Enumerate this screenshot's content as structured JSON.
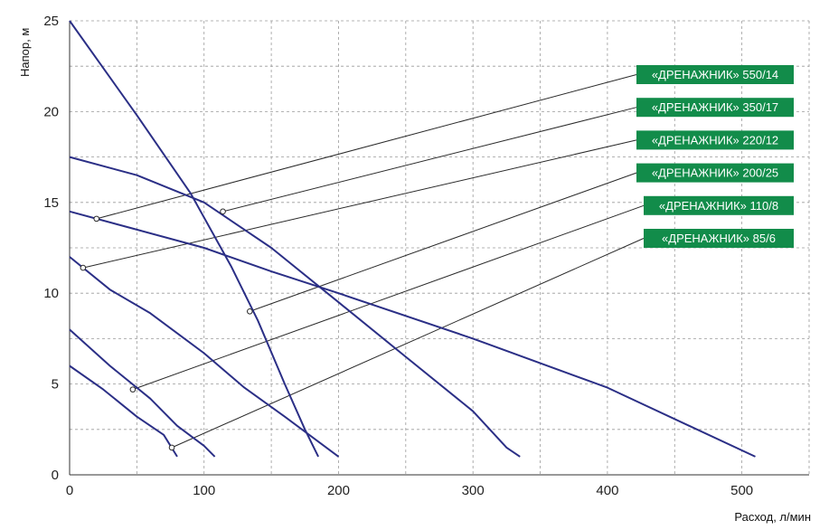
{
  "colors": {
    "curve": "#2b2f86",
    "leader": "#2a2a2a",
    "legend_bg": "#128c4a",
    "legend_text": "#ffffff",
    "grid": "#9a9a9a"
  },
  "chart_data": {
    "type": "line",
    "xlabel": "Расход, л/мин",
    "ylabel": "Напор, м",
    "xlim": [
      0,
      550
    ],
    "ylim": [
      0,
      25
    ],
    "xticks": [
      "0",
      "100",
      "200",
      "300",
      "400",
      "500"
    ],
    "yticks": [
      "0",
      "5",
      "10",
      "15",
      "20",
      "25"
    ],
    "grid": true,
    "grid_style": "dashed",
    "series": [
      {
        "name": "«ДРЕНАЖНИК» 550/14",
        "points": [
          [
            0,
            14.5
          ],
          [
            50,
            13.5
          ],
          [
            100,
            12.5
          ],
          [
            150,
            11.2
          ],
          [
            200,
            10.0
          ],
          [
            300,
            7.5
          ],
          [
            400,
            4.8
          ],
          [
            510,
            1.0
          ]
        ],
        "marker": [
          20,
          14.1
        ]
      },
      {
        "name": "«ДРЕНАЖНИК» 350/17",
        "points": [
          [
            0,
            17.5
          ],
          [
            50,
            16.5
          ],
          [
            100,
            15.0
          ],
          [
            150,
            12.5
          ],
          [
            200,
            9.5
          ],
          [
            250,
            6.5
          ],
          [
            300,
            3.5
          ],
          [
            325,
            1.5
          ],
          [
            335,
            1.0
          ]
        ],
        "marker": [
          114,
          14.5
        ]
      },
      {
        "name": "«ДРЕНАЖНИК» 220/12",
        "points": [
          [
            0,
            12.0
          ],
          [
            30,
            10.2
          ],
          [
            60,
            8.9
          ],
          [
            100,
            6.7
          ],
          [
            130,
            4.8
          ],
          [
            160,
            3.2
          ],
          [
            200,
            1.0
          ]
        ],
        "marker": [
          10,
          11.4
        ]
      },
      {
        "name": "«ДРЕНАЖНИК» 200/25",
        "points": [
          [
            0,
            25.0
          ],
          [
            50,
            19.8
          ],
          [
            90,
            15.5
          ],
          [
            120,
            11.5
          ],
          [
            140,
            8.5
          ],
          [
            160,
            5.0
          ],
          [
            175,
            2.5
          ],
          [
            185,
            1.0
          ]
        ],
        "marker": [
          134,
          9.0
        ]
      },
      {
        "name": "«ДРЕНАЖНИК» 110/8",
        "points": [
          [
            0,
            8.0
          ],
          [
            30,
            6.0
          ],
          [
            60,
            4.2
          ],
          [
            80,
            2.7
          ],
          [
            100,
            1.6
          ],
          [
            108,
            1.0
          ]
        ],
        "marker": [
          47,
          4.7
        ]
      },
      {
        "name": "«ДРЕНАЖНИК» 85/6",
        "points": [
          [
            0,
            6.0
          ],
          [
            25,
            4.7
          ],
          [
            50,
            3.2
          ],
          [
            70,
            2.2
          ],
          [
            80,
            1.0
          ]
        ],
        "marker": [
          76,
          1.5
        ]
      }
    ]
  }
}
